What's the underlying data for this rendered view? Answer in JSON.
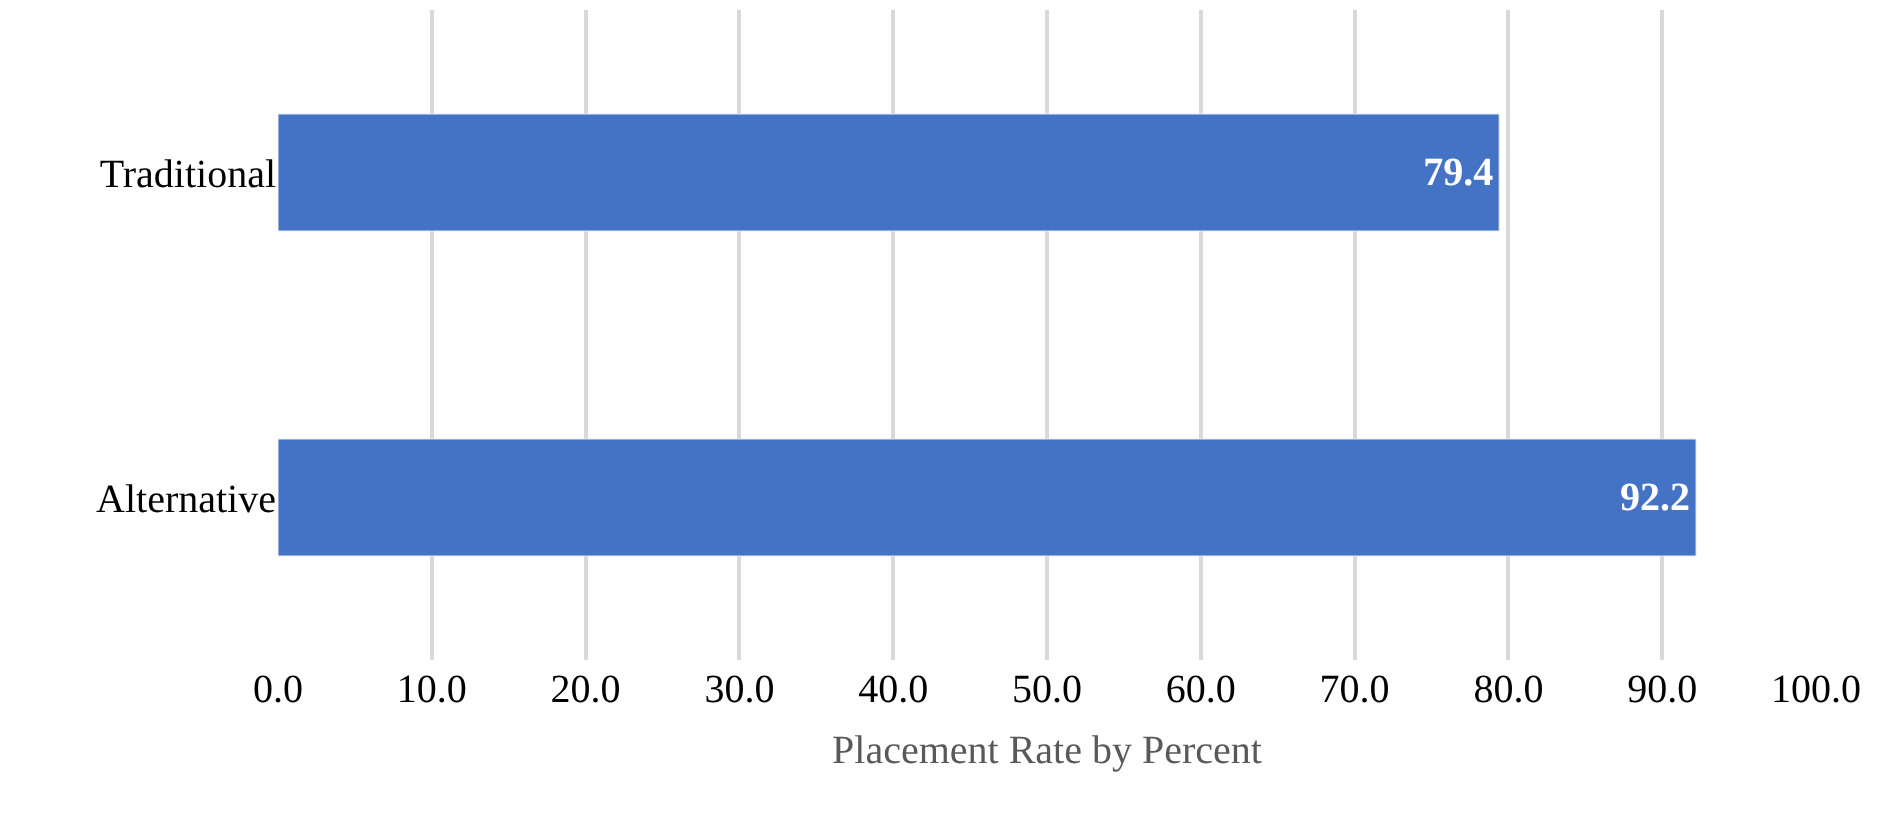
{
  "chart_data": {
    "type": "bar",
    "orientation": "horizontal",
    "xlabel": "Placement Rate by Percent",
    "categories": [
      "Traditional",
      "Alternative"
    ],
    "values": [
      79.4,
      92.2
    ],
    "color": "#4472c4",
    "data_labels": true,
    "xlim": [
      0,
      100
    ],
    "xticks": [
      {
        "value": 0,
        "label": "0.0"
      },
      {
        "value": 10,
        "label": "10.0"
      },
      {
        "value": 20,
        "label": "20.0"
      },
      {
        "value": 30,
        "label": "30.0"
      },
      {
        "value": 40,
        "label": "40.0"
      },
      {
        "value": 50,
        "label": "50.0"
      },
      {
        "value": 60,
        "label": "60.0"
      },
      {
        "value": 70,
        "label": "70.0"
      },
      {
        "value": 80,
        "label": "80.0"
      },
      {
        "value": 90,
        "label": "90.0"
      },
      {
        "value": 100,
        "label": "100.0"
      }
    ],
    "grid": "x"
  }
}
